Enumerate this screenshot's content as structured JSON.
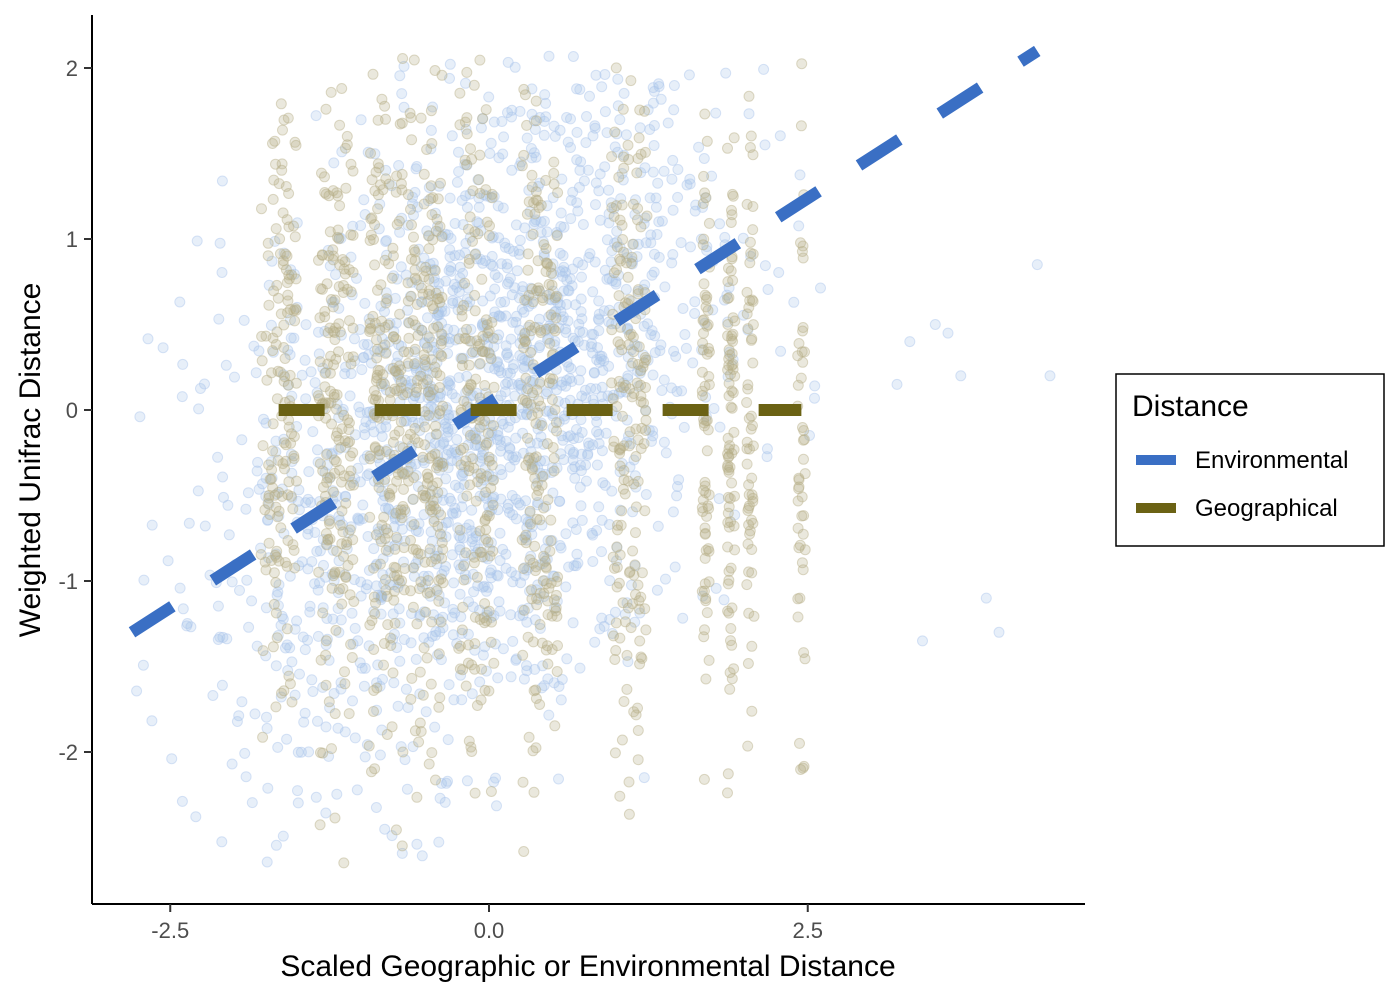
{
  "chart_data": {
    "type": "scatter",
    "xlabel": "Scaled Geographic or Environmental Distance",
    "ylabel": "Weighted Unifrac Distance",
    "xlim": [
      -3.0,
      3.8
    ],
    "ylim": [
      -2.9,
      2.3
    ],
    "x_ticks": [
      -2.5,
      0.0,
      2.5
    ],
    "x_tick_labels": [
      "-2.5",
      "0.0",
      "2.5"
    ],
    "y_ticks": [
      -2,
      -1,
      0,
      1,
      2
    ],
    "y_tick_labels": [
      "-2",
      "-1",
      "0",
      "1",
      "2"
    ],
    "grid": false,
    "legend": {
      "title": "Distance",
      "position": "right",
      "entries": [
        {
          "name": "Environmental",
          "color": "#3a6fc4"
        },
        {
          "name": "Geographical",
          "color": "#6b6214"
        }
      ]
    },
    "series": [
      {
        "name": "Environmental",
        "color": "#3a6fc4",
        "point_color": "#a9c4ea",
        "fit_line": {
          "x": [
            -2.8,
            4.3
          ],
          "y": [
            -1.3,
            2.1
          ],
          "style": "dashed"
        },
        "points_summary": {
          "x_range": [
            -2.8,
            4.3
          ],
          "y_range": [
            -2.6,
            2.0
          ],
          "approx_count": 1800
        }
      },
      {
        "name": "Geographical",
        "color": "#6b6214",
        "point_color": "#b5ae86",
        "fit_line": {
          "x": [
            -1.65,
            2.45
          ],
          "y": [
            0.0,
            0.0
          ],
          "style": "dashed"
        },
        "points_summary": {
          "x_columns": [
            -1.65,
            -1.2,
            -0.8,
            -0.5,
            -0.1,
            0.4,
            1.1,
            1.7,
            1.9,
            2.05,
            2.45
          ],
          "y_range": [
            -2.6,
            2.0
          ],
          "approx_count": 1500
        }
      }
    ]
  }
}
